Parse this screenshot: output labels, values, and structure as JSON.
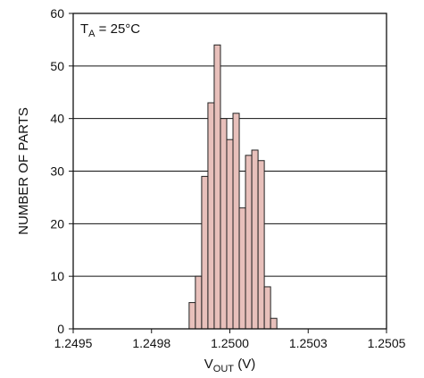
{
  "chart_data": {
    "type": "bar",
    "style": "histogram",
    "annotation": {
      "main": "T",
      "sub": "A",
      "rest": " = 25°C"
    },
    "xlabel": {
      "main": "V",
      "sub": "OUT",
      "rest": " (V)"
    },
    "ylabel": "NUMBER OF PARTS",
    "xlim": [
      1.2495,
      1.2505
    ],
    "ylim": [
      0,
      60
    ],
    "x_ticks": [
      1.2495,
      1.24975,
      1.25,
      1.25025,
      1.2505
    ],
    "x_tick_labels": [
      "1.2495",
      "1.2498",
      "1.2500",
      "1.2503",
      "1.2505"
    ],
    "y_ticks": [
      0,
      10,
      20,
      30,
      40,
      50,
      60
    ],
    "y_tick_labels": [
      "0",
      "10",
      "20",
      "30",
      "40",
      "50",
      "60"
    ],
    "grid": "horizontal",
    "bin_width": 2e-05,
    "bin_starts": [
      1.24987,
      1.24989,
      1.24991,
      1.24993,
      1.24995,
      1.24997,
      1.24999,
      1.25001,
      1.25003,
      1.25005,
      1.25007,
      1.25009,
      1.25011,
      1.25013,
      1.25015
    ],
    "values": [
      5,
      10,
      29,
      43,
      54,
      40,
      36,
      41,
      23,
      33,
      34,
      32,
      8,
      2,
      0
    ],
    "colors": {
      "bar_fill": "#e8c0bb",
      "bar_stroke": "#222222",
      "axis": "#111111",
      "grid": "#111111"
    }
  }
}
